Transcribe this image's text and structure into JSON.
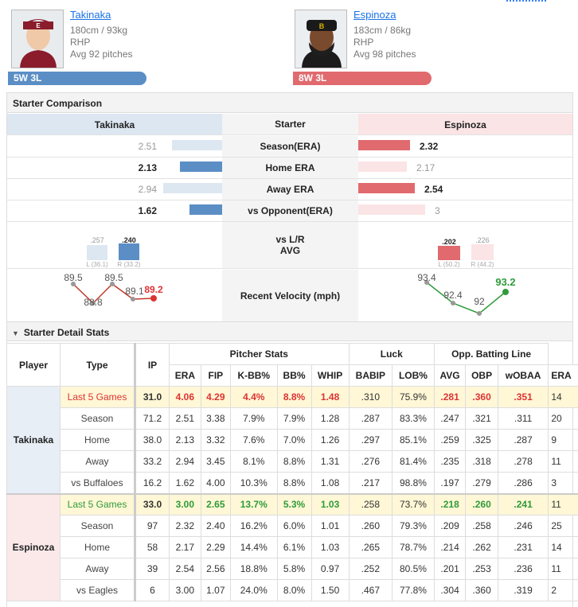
{
  "players": {
    "left": {
      "name": "Takinaka",
      "size": "180cm / 93kg",
      "hand": "RHP",
      "avg": "Avg 92 pitches",
      "record": "5W 3L"
    },
    "right": {
      "name": "Espinoza",
      "size": "183cm / 86kg",
      "hand": "RHP",
      "avg": "Avg 98 pitches",
      "record": "8W 3L"
    }
  },
  "colors": {
    "left": "#5b8ec5",
    "right": "#e06a6e",
    "left_light": "#dde7f2",
    "right_light": "#fbe4e5",
    "highlight": "#fff7d6"
  },
  "comparison": {
    "title": "Starter Comparison",
    "header": {
      "left": "Takinaka",
      "mid": "Starter",
      "right": "Espinoza"
    },
    "rows": [
      {
        "label": "Season(ERA)",
        "left": "2.51",
        "right": "2.32",
        "left_better": false
      },
      {
        "label": "Home ERA",
        "left": "2.13",
        "right": "2.17",
        "left_better": true
      },
      {
        "label": "Away ERA",
        "left": "2.94",
        "right": "2.54",
        "left_better": false
      },
      {
        "label": "vs Opponent(ERA)",
        "left": "1.62",
        "right": "3",
        "left_better": true
      }
    ],
    "lr_label": "vs L/R\nAVG",
    "lr_left": {
      "L": ".257",
      "L_sub": "L (36.1)",
      "R": ".240",
      "R_sub": "R (33.2)"
    },
    "lr_right": {
      "L": ".202",
      "L_sub": "L (50.2)",
      "R": ".226",
      "R_sub": "R (44.2)"
    },
    "velo_label": "Recent Velocity (mph)",
    "velo_left": [
      "89.5",
      "88.8",
      "89.5",
      "89.1",
      "89.2"
    ],
    "velo_right": [
      "93.4",
      "92.4",
      "92",
      "93.2"
    ]
  },
  "detail": {
    "title": "Starter Detail Stats",
    "headers": {
      "player": "Player",
      "type": "Type",
      "ip": "IP",
      "pitcher": "Pitcher Stats",
      "luck": "Luck",
      "opp": "Opp. Batting Line"
    },
    "cols": [
      "ERA",
      "FIP",
      "K-BB%",
      "BB%",
      "WHIP",
      "BABIP",
      "LOB%",
      "AVG",
      "OBP",
      "wOBAA",
      "ERA"
    ],
    "left_rows": [
      [
        "Last 5 Games",
        "31.0",
        "4.06",
        "4.29",
        "4.4%",
        "8.8%",
        "1.48",
        ".310",
        "75.9%",
        ".281",
        ".360",
        ".351",
        "14"
      ],
      [
        "Season",
        "71.2",
        "2.51",
        "3.38",
        "7.9%",
        "7.9%",
        "1.28",
        ".287",
        "83.3%",
        ".247",
        ".321",
        ".311",
        "20"
      ],
      [
        "Home",
        "38.0",
        "2.13",
        "3.32",
        "7.6%",
        "7.0%",
        "1.26",
        ".297",
        "85.1%",
        ".259",
        ".325",
        ".287",
        "9"
      ],
      [
        "Away",
        "33.2",
        "2.94",
        "3.45",
        "8.1%",
        "8.8%",
        "1.31",
        ".276",
        "81.4%",
        ".235",
        ".318",
        ".278",
        "11"
      ],
      [
        "vs Buffaloes",
        "16.2",
        "1.62",
        "4.00",
        "10.3%",
        "8.8%",
        "1.08",
        ".217",
        "98.8%",
        ".197",
        ".279",
        ".286",
        "3"
      ]
    ],
    "right_rows": [
      [
        "Last 5 Games",
        "33.0",
        "3.00",
        "2.65",
        "13.7%",
        "5.3%",
        "1.03",
        ".258",
        "73.7%",
        ".218",
        ".260",
        ".241",
        "11"
      ],
      [
        "Season",
        "97",
        "2.32",
        "2.40",
        "16.2%",
        "6.0%",
        "1.01",
        ".260",
        "79.3%",
        ".209",
        ".258",
        ".246",
        "25"
      ],
      [
        "Home",
        "58",
        "2.17",
        "2.29",
        "14.4%",
        "6.1%",
        "1.03",
        ".265",
        "78.7%",
        ".214",
        ".262",
        ".231",
        "14"
      ],
      [
        "Away",
        "39",
        "2.54",
        "2.56",
        "18.8%",
        "5.8%",
        "0.97",
        ".252",
        "80.5%",
        ".201",
        ".253",
        ".236",
        "11"
      ],
      [
        "vs Eagles",
        "6",
        "3.00",
        "1.07",
        "24.0%",
        "8.0%",
        "1.50",
        ".467",
        "77.8%",
        ".304",
        ".360",
        ".319",
        "2"
      ]
    ]
  }
}
